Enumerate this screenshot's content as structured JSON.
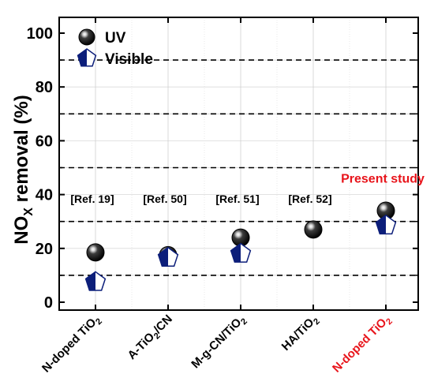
{
  "chart_data": {
    "type": "scatter",
    "title": "",
    "xlabel": "",
    "ylabel": "NOx removal (%)",
    "ylabel_parts": {
      "main": "NO",
      "subscript": "X",
      "rest": " removal (%)"
    },
    "ylim": [
      0,
      100
    ],
    "yticks": [
      "0",
      "20",
      "40",
      "60",
      "80",
      "100"
    ],
    "dashed_gridlines_y": [
      10,
      30,
      50,
      70,
      90
    ],
    "grid": true,
    "legend_position": "top-left",
    "categories": [
      {
        "base": "N-doped TiO",
        "sub": "2",
        "after": "",
        "color": "#000000"
      },
      {
        "base": "A-TiO",
        "sub": "2",
        "after": "/CN",
        "color": "#000000"
      },
      {
        "base": "M-g-CN/TiO",
        "sub": "2",
        "after": "",
        "color": "#000000"
      },
      {
        "base": "HA/TiO",
        "sub": "2",
        "after": "",
        "color": "#000000"
      },
      {
        "base": "N-doped TiO",
        "sub": "2",
        "after": "",
        "color": "#e8141b"
      }
    ],
    "series": [
      {
        "name": "UV",
        "marker": "sphere",
        "color": "#000000",
        "values": [
          18.5,
          17.5,
          24,
          27,
          34
        ]
      },
      {
        "name": "Visible",
        "marker": "pentagon",
        "color": "#0c1e7a",
        "values": [
          7.5,
          16.5,
          18,
          null,
          28.5
        ]
      }
    ],
    "annotations": [
      {
        "text": "[Ref. 19]",
        "category_index": 0,
        "y": 37,
        "color": "#000000"
      },
      {
        "text": "[Ref. 50]",
        "category_index": 1,
        "y": 37,
        "color": "#000000"
      },
      {
        "text": "[Ref. 51]",
        "category_index": 2,
        "y": 37,
        "color": "#000000"
      },
      {
        "text": "[Ref. 52]",
        "category_index": 3,
        "y": 37,
        "color": "#000000"
      },
      {
        "text": "Present study",
        "category_index": 4,
        "y": 44.5,
        "color": "#e8141b"
      }
    ]
  }
}
